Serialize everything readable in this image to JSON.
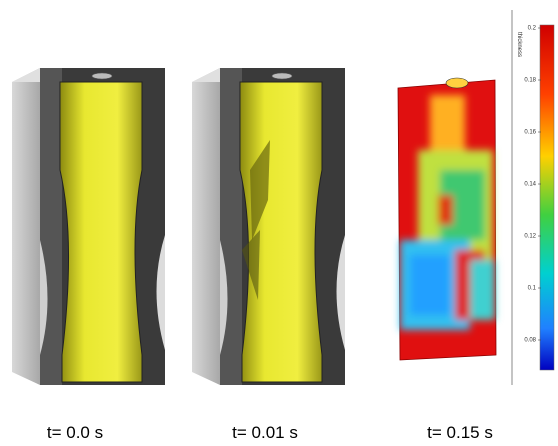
{
  "panels": [
    {
      "caption": "t= 0.0 s"
    },
    {
      "caption": "t= 0.01 s"
    },
    {
      "caption": "t= 0.15 s"
    }
  ],
  "colorbar": {
    "label": "thickness",
    "ticks": [
      0.2,
      0.18,
      0.16,
      0.14,
      0.12,
      0.1,
      0.08
    ]
  }
}
